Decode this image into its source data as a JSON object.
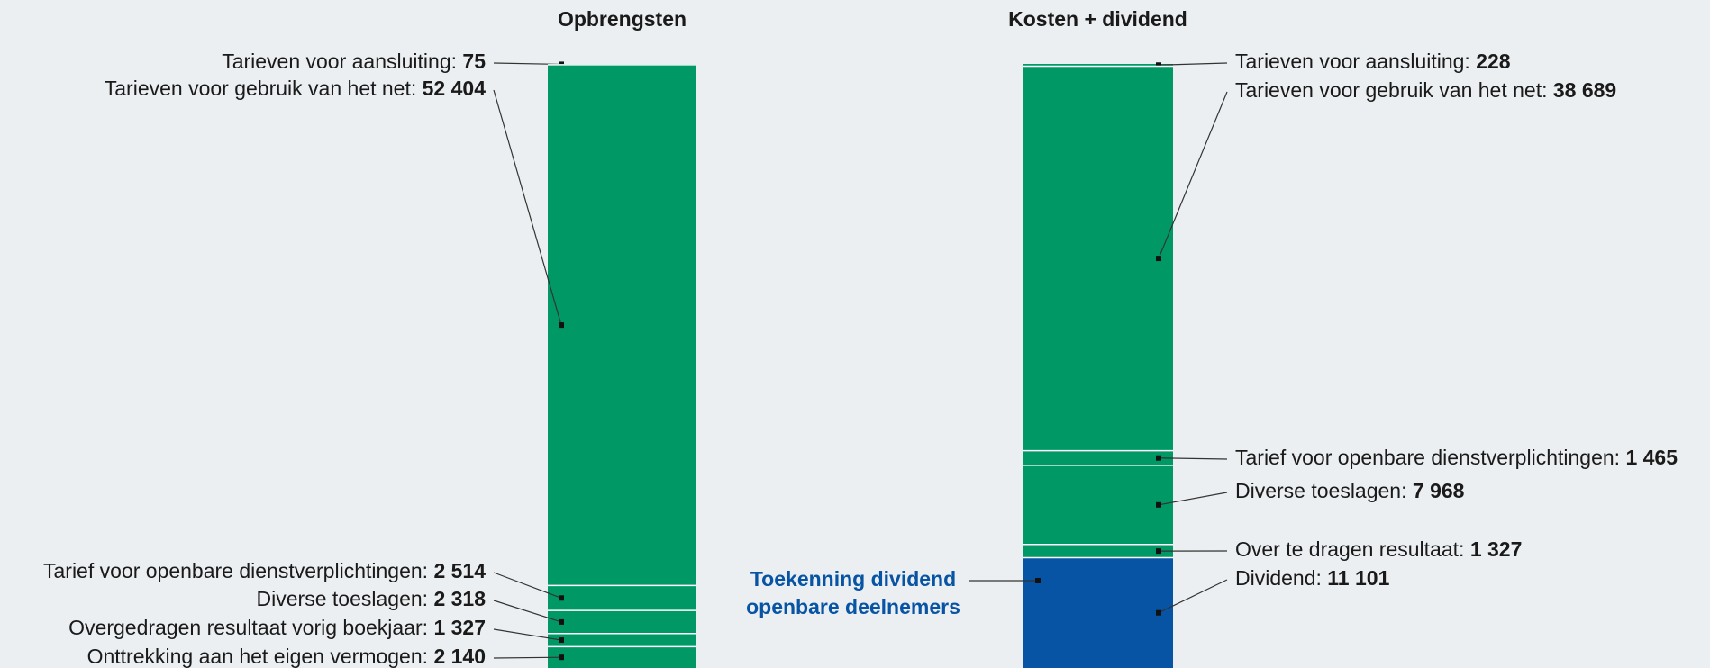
{
  "chart_data": [
    {
      "type": "stacked_bar",
      "title": "Opbrengsten",
      "series": [
        {
          "name": "Tarieven voor aansluiting:",
          "color": "#009966",
          "values": [
            75
          ],
          "value_labels": [
            "75"
          ]
        },
        {
          "name": "Tarieven voor gebruik van het net:",
          "color": "#009966",
          "values": [
            52404
          ],
          "value_labels": [
            "52 404"
          ]
        },
        {
          "name": "Tarief voor openbare dienstverplichtingen:",
          "color": "#009966",
          "values": [
            2514
          ],
          "value_labels": [
            "2 514"
          ]
        },
        {
          "name": "Diverse toeslagen:",
          "color": "#009966",
          "values": [
            2318
          ],
          "value_labels": [
            "2 318"
          ]
        },
        {
          "name": "Overgedragen resultaat vorig boekjaar:",
          "color": "#009966",
          "values": [
            1327
          ],
          "value_labels": [
            "1 327"
          ]
        },
        {
          "name": "Onttrekking aan het eigen vermogen:",
          "color": "#009966",
          "values": [
            2140
          ],
          "value_labels": [
            "2 140"
          ]
        }
      ]
    },
    {
      "type": "stacked_bar",
      "title": "Kosten + dividend",
      "annotation": [
        "Toekenning dividend",
        "openbare deelnemers"
      ],
      "series": [
        {
          "name": "Tarieven voor aansluiting:",
          "color": "#009966",
          "values": [
            228
          ],
          "value_labels": [
            "228"
          ]
        },
        {
          "name": "Tarieven voor gebruik van het net:",
          "color": "#009966",
          "values": [
            38689
          ],
          "value_labels": [
            "38 689"
          ]
        },
        {
          "name": "Tarief voor openbare dienstverplichtingen:",
          "color": "#009966",
          "values": [
            1465
          ],
          "value_labels": [
            "1 465"
          ]
        },
        {
          "name": "Diverse toeslagen:",
          "color": "#009966",
          "values": [
            7968
          ],
          "value_labels": [
            "7 968"
          ]
        },
        {
          "name": "Over te dragen resultaat:",
          "color": "#009966",
          "values": [
            1327
          ],
          "value_labels": [
            "1 327"
          ]
        },
        {
          "name": "Dividend:",
          "color": "#0753a4",
          "values": [
            11101
          ],
          "value_labels": [
            "11 101"
          ]
        }
      ]
    }
  ]
}
